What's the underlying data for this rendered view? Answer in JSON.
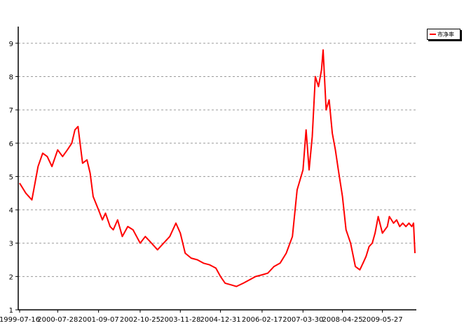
{
  "chart_data": {
    "type": "line",
    "title": "",
    "xlabel": "",
    "ylabel": "",
    "ylim": [
      1,
      9.5
    ],
    "y_ticks": [
      1,
      2,
      3,
      4,
      5,
      6,
      7,
      8,
      9
    ],
    "x_tick_labels": [
      "1999-07-16",
      "2000-07-28",
      "2001-09-07",
      "2002-10-25",
      "2003-11-28",
      "2004-12-31",
      "2006-02-17",
      "2007-03-30",
      "2008-04-25",
      "2009-05-27"
    ],
    "grid": "horizontal dashed",
    "legend_position": "top-right",
    "colors": {
      "line": "#ff0000",
      "grid": "#9a9a9a",
      "axis": "#000000"
    },
    "series": [
      {
        "name": "市净率",
        "x": [
          "1999-07-16",
          "1999-09-15",
          "1999-11-15",
          "2000-01-15",
          "2000-03-01",
          "2000-04-15",
          "2000-06-01",
          "2000-07-28",
          "2000-09-15",
          "2000-11-01",
          "2000-12-15",
          "2001-01-15",
          "2001-02-15",
          "2001-04-01",
          "2001-05-15",
          "2001-06-15",
          "2001-07-15",
          "2001-09-07",
          "2001-10-15",
          "2001-11-15",
          "2001-12-31",
          "2002-01-31",
          "2002-03-15",
          "2002-05-01",
          "2002-06-24",
          "2002-08-15",
          "2002-10-25",
          "2002-12-15",
          "2003-02-15",
          "2003-04-15",
          "2003-06-15",
          "2003-08-15",
          "2003-10-15",
          "2003-11-28",
          "2004-01-15",
          "2004-03-15",
          "2004-05-15",
          "2004-07-15",
          "2004-09-15",
          "2004-11-15",
          "2004-12-31",
          "2005-02-15",
          "2005-04-15",
          "2005-06-06",
          "2005-08-15",
          "2005-10-15",
          "2005-12-15",
          "2006-02-17",
          "2006-04-15",
          "2006-06-15",
          "2006-08-15",
          "2006-10-15",
          "2006-12-15",
          "2007-01-31",
          "2007-03-30",
          "2007-04-30",
          "2007-05-30",
          "2007-06-30",
          "2007-07-31",
          "2007-08-31",
          "2007-09-30",
          "2007-10-16",
          "2007-11-15",
          "2007-12-15",
          "2008-01-15",
          "2008-02-15",
          "2008-03-15",
          "2008-04-25",
          "2008-05-31",
          "2008-07-15",
          "2008-08-31",
          "2008-10-15",
          "2008-11-15",
          "2008-12-15",
          "2009-01-15",
          "2009-02-15",
          "2009-03-15",
          "2009-04-15",
          "2009-05-27",
          "2009-07-15",
          "2009-08-04",
          "2009-09-15",
          "2009-10-15",
          "2009-11-15",
          "2009-12-15",
          "2010-01-15",
          "2010-02-15",
          "2010-03-15",
          "2010-04-01",
          "2010-04-15"
        ],
        "values": [
          4.8,
          4.5,
          4.3,
          5.3,
          5.7,
          5.6,
          5.3,
          5.8,
          5.6,
          5.8,
          6.0,
          6.4,
          6.5,
          5.4,
          5.5,
          5.1,
          4.4,
          4.0,
          3.7,
          3.9,
          3.5,
          3.4,
          3.7,
          3.2,
          3.5,
          3.4,
          3.0,
          3.2,
          3.0,
          2.8,
          3.0,
          3.2,
          3.6,
          3.3,
          2.7,
          2.55,
          2.5,
          2.4,
          2.35,
          2.25,
          2.0,
          1.8,
          1.75,
          1.7,
          1.8,
          1.9,
          2.0,
          2.05,
          2.1,
          2.3,
          2.4,
          2.7,
          3.2,
          4.6,
          5.2,
          6.4,
          5.2,
          6.2,
          8.0,
          7.7,
          8.2,
          8.8,
          7.0,
          7.3,
          6.3,
          5.8,
          5.2,
          4.4,
          3.4,
          3.0,
          2.3,
          2.2,
          2.4,
          2.6,
          2.9,
          3.0,
          3.3,
          3.8,
          3.3,
          3.5,
          3.8,
          3.6,
          3.7,
          3.5,
          3.6,
          3.5,
          3.6,
          3.5,
          3.6,
          2.7
        ]
      }
    ]
  }
}
